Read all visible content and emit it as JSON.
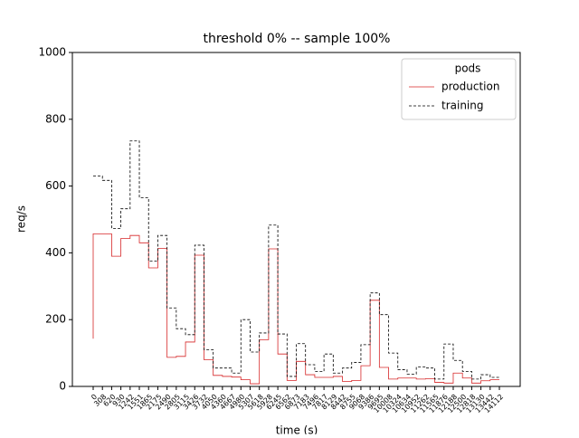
{
  "chart_data": {
    "type": "line",
    "drawstyle": "steps-pre",
    "title": "threshold 0% -- sample 100%",
    "x_label": "time (s)",
    "y_label": "req/s",
    "categories": [
      "0",
      "308",
      "620",
      "930",
      "1242",
      "1551",
      "1865",
      "2175",
      "2490",
      "2805",
      "3115",
      "3426",
      "3732",
      "4050",
      "4360",
      "4667",
      "4980",
      "5307",
      "5618",
      "5928",
      "6245",
      "6562",
      "6873",
      "7183",
      "7496",
      "7817",
      "8129",
      "8442",
      "8755",
      "9068",
      "9386",
      "9695",
      "10008",
      "10324",
      "10634",
      "10952",
      "11262",
      "11565",
      "11876",
      "12188",
      "12500",
      "12818",
      "13130",
      "13442",
      "14112"
    ],
    "series": [
      {
        "name": "production",
        "color": "#d62728",
        "linestyle": "solid",
        "values": [
          143,
          457,
          457,
          390,
          443,
          452,
          430,
          355,
          413,
          87,
          90,
          133,
          393,
          80,
          33,
          30,
          28,
          20,
          8,
          140,
          412,
          97,
          18,
          75,
          35,
          27,
          27,
          30,
          15,
          18,
          62,
          258,
          57,
          22,
          25,
          25,
          22,
          23,
          12,
          10,
          40,
          25,
          10,
          17,
          20
        ]
      },
      {
        "name": "training",
        "color": "#000000",
        "linestyle": "dashed",
        "values": [
          630,
          630,
          617,
          473,
          532,
          735,
          565,
          375,
          452,
          235,
          173,
          155,
          423,
          110,
          55,
          55,
          40,
          200,
          103,
          160,
          483,
          157,
          30,
          128,
          65,
          45,
          97,
          40,
          55,
          72,
          125,
          280,
          215,
          100,
          50,
          37,
          58,
          55,
          22,
          127,
          78,
          45,
          22,
          35,
          27
        ]
      }
    ],
    "ylim": [
      0,
      1000
    ],
    "yticks": [
      0,
      200,
      400,
      600,
      800,
      1000
    ],
    "legend_title": "pods",
    "legend": "upper right"
  }
}
